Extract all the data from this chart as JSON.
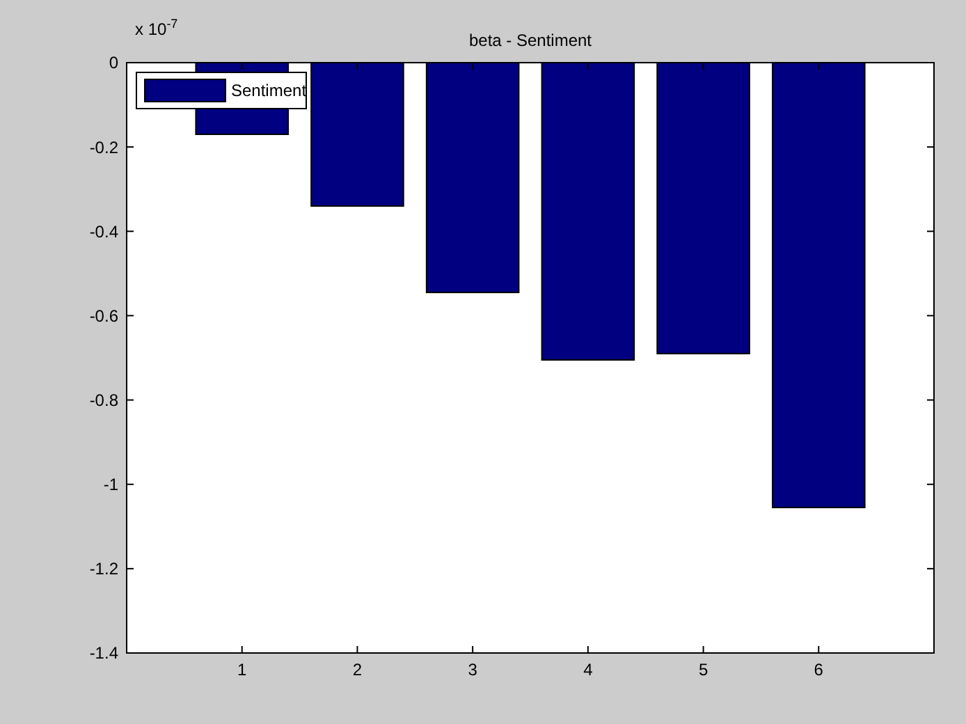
{
  "chart_data": {
    "type": "bar",
    "title": "beta - Sentiment",
    "annotations": [
      "x 10$^{-7}$"
    ],
    "x": [
      1,
      2,
      3,
      4,
      5,
      6
    ],
    "xlim": [
      0,
      7
    ],
    "xticks": [
      1,
      2,
      3,
      4,
      5,
      6
    ],
    "series": [
      {
        "name": "Sentiment",
        "color": "#000080",
        "values": [
          -0.17,
          -0.34,
          -0.545,
          -0.705,
          -0.69,
          -1.055
        ]
      }
    ],
    "ylim": [
      -1.4,
      0
    ],
    "yticks": [
      -1.4,
      -1.2,
      -1,
      -0.8,
      -0.6,
      -0.4,
      -0.2,
      0
    ],
    "legend": "top left"
  }
}
